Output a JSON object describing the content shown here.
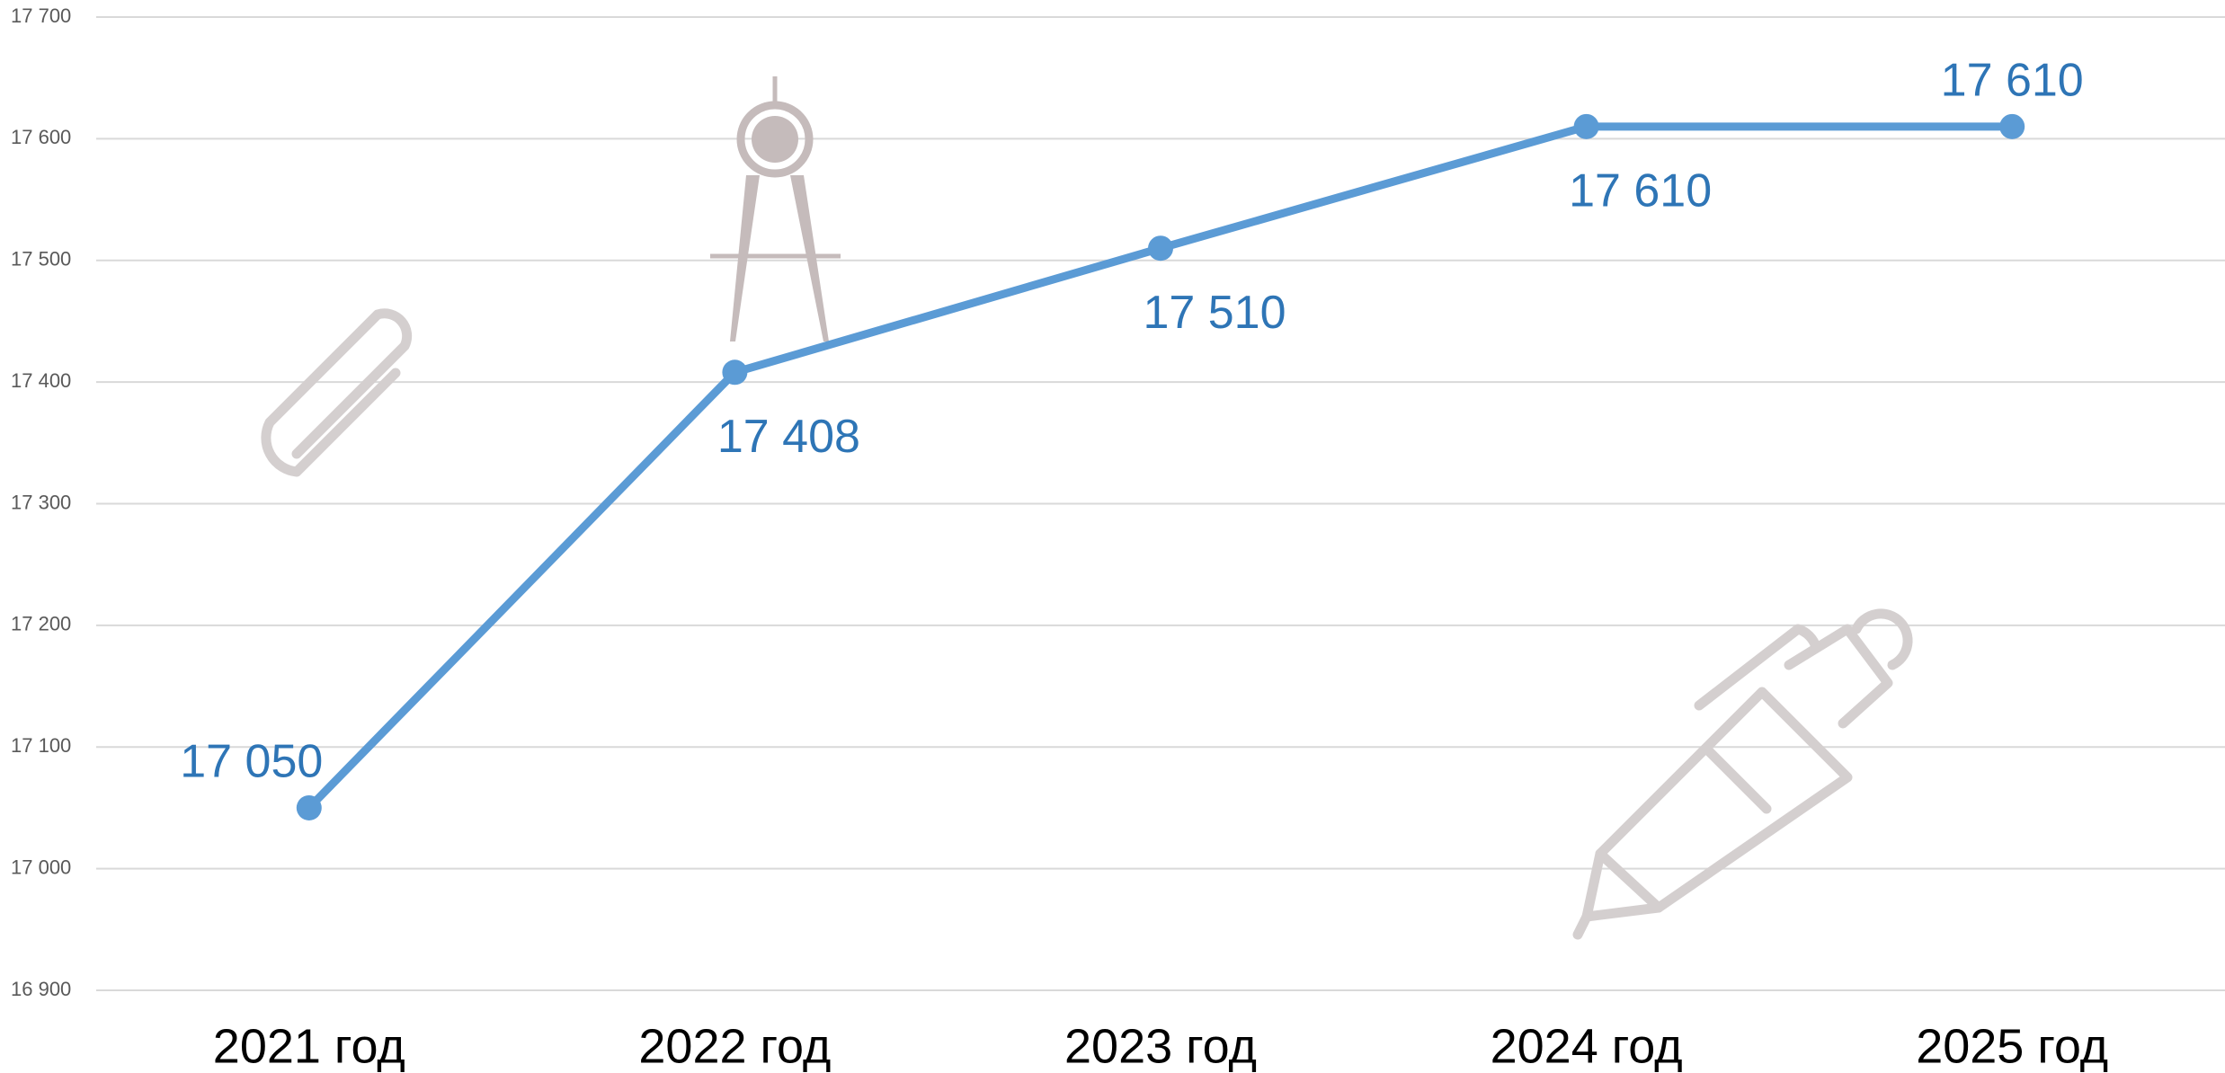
{
  "chart_data": {
    "type": "line",
    "categories": [
      "2021 год",
      "2022 год",
      "2023 год",
      "2024 год",
      "2025 год"
    ],
    "series": [
      {
        "color": "#5b9bd5",
        "values": [
          17050,
          17408,
          17510,
          17610,
          17610
        ],
        "value_labels": [
          "17 050",
          "17 408",
          "17 510",
          "17 610",
          "17 610"
        ]
      }
    ],
    "ylim": [
      16900,
      17700
    ],
    "yticks": [
      {
        "value": 16900,
        "label": "16 900"
      },
      {
        "value": 17000,
        "label": "17 000"
      },
      {
        "value": 17100,
        "label": "17 100"
      },
      {
        "value": 17200,
        "label": "17 200"
      },
      {
        "value": 17300,
        "label": "17 300"
      },
      {
        "value": 17400,
        "label": "17 400"
      },
      {
        "value": 17500,
        "label": "17 500"
      },
      {
        "value": 17600,
        "label": "17 600"
      },
      {
        "value": 17700,
        "label": "17 700"
      }
    ],
    "grid": true
  }
}
